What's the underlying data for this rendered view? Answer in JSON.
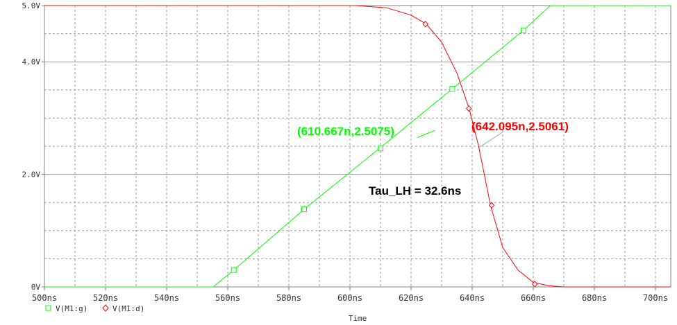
{
  "chart_data": {
    "type": "line",
    "xlabel": "Time",
    "ylabel": "",
    "xlim": [
      500,
      705
    ],
    "ylim": [
      0,
      5
    ],
    "x_ticks": [
      500,
      520,
      540,
      560,
      580,
      600,
      620,
      640,
      660,
      680,
      700
    ],
    "x_tick_labels": [
      "500ns",
      "520ns",
      "540ns",
      "560ns",
      "580ns",
      "600ns",
      "620ns",
      "640ns",
      "660ns",
      "680ns",
      "700ns"
    ],
    "y_ticks": [
      0,
      2,
      4,
      5
    ],
    "y_tick_labels": [
      "0V",
      "2.0V",
      "4.0V",
      "5.0V"
    ],
    "grid": true,
    "series": [
      {
        "name": "V(M1:g)",
        "color": "#00ff00",
        "marker": "square",
        "x": [
          500,
          555.2,
          562.0,
          585.0,
          610.7,
          633.5,
          656.8,
          665.6,
          705
        ],
        "y": [
          0,
          0,
          0.3,
          1.38,
          2.5075,
          3.52,
          4.56,
          5.0,
          5.0
        ],
        "marker_x": [
          562.0,
          585.0,
          610.0,
          633.5,
          656.8
        ],
        "marker_y": [
          0.3,
          1.38,
          2.46,
          3.52,
          4.56
        ]
      },
      {
        "name": "V(M1:d)",
        "color": "#ff0000",
        "marker": "diamond",
        "x": [
          500,
          555,
          602,
          612,
          620,
          625,
          630,
          635,
          639,
          642.1,
          646,
          650,
          655,
          660,
          665,
          670,
          705
        ],
        "y": [
          5.0,
          5.0,
          5.0,
          4.96,
          4.83,
          4.67,
          4.35,
          3.8,
          3.17,
          2.5061,
          1.45,
          0.7,
          0.3,
          0.08,
          0.02,
          0,
          0
        ],
        "marker_x": [
          624.7,
          638.9,
          646.4,
          660.5
        ],
        "marker_y": [
          4.67,
          3.17,
          1.45,
          0.05
        ]
      }
    ],
    "annotations": [
      {
        "text": "(610.667n,2.5075)",
        "color": "#00ff00",
        "x": 610.667,
        "y": 2.5075
      },
      {
        "text": "(642.095n,2.5061)",
        "color": "#ff0000",
        "x": 642.095,
        "y": 2.5061
      },
      {
        "text": "Tau_LH = 32.6ns",
        "color": "#000000"
      }
    ]
  }
}
